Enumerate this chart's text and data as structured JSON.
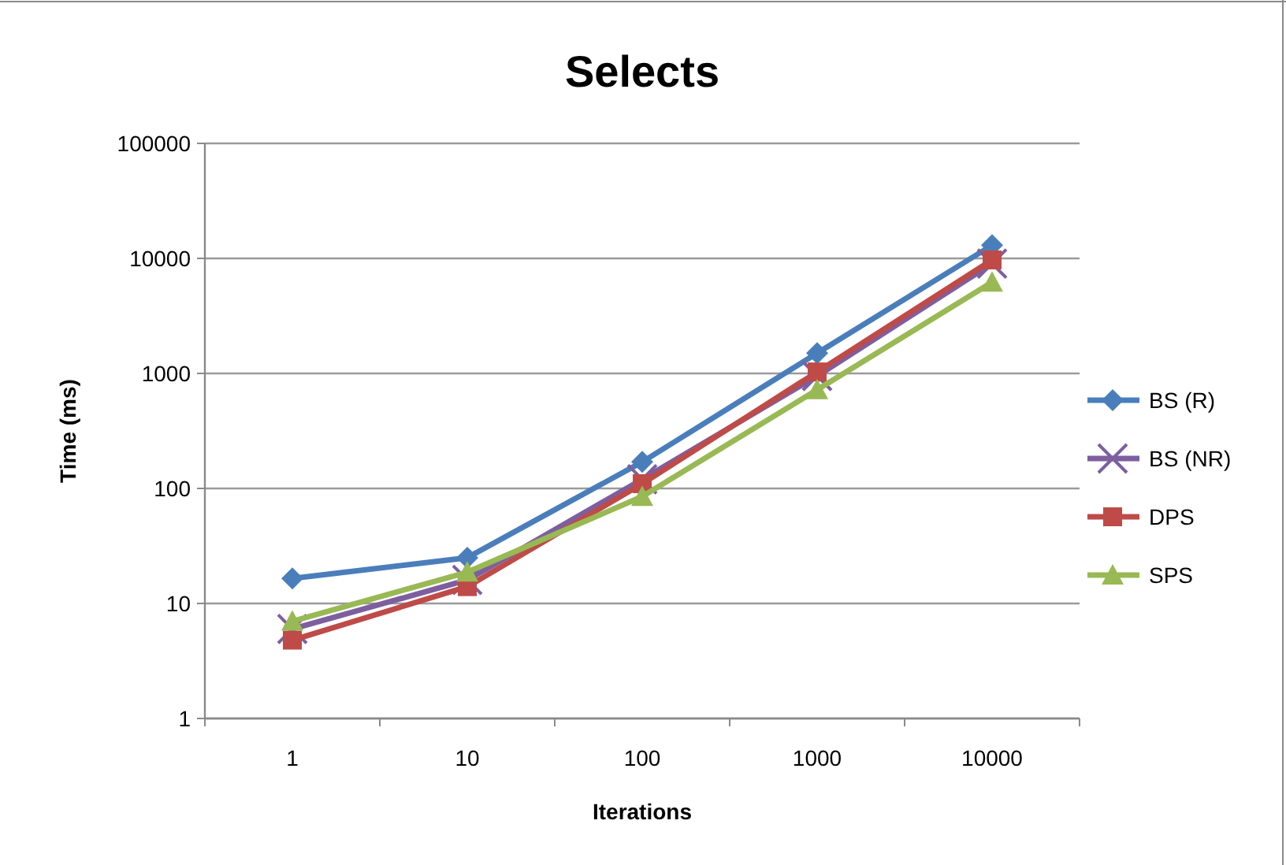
{
  "chart_data": {
    "type": "line",
    "title": "Selects",
    "xlabel": "Iterations",
    "ylabel": "Time (ms)",
    "categories": [
      "1",
      "10",
      "100",
      "1000",
      "10000"
    ],
    "log": "y",
    "ylim": [
      1,
      100000
    ],
    "yticks": [
      1,
      10,
      100,
      1000,
      10000,
      100000
    ],
    "grid": "y",
    "legend": "right",
    "series": [
      {
        "name": "BS (R)",
        "color": "#4a7ebb",
        "marker": "diamond",
        "values": [
          16.5,
          25,
          170,
          1500,
          13000
        ]
      },
      {
        "name": "BS (NR)",
        "color": "#7d5fa0",
        "marker": "cross",
        "values": [
          6,
          16,
          120,
          950,
          9000
        ]
      },
      {
        "name": "DPS",
        "color": "#be4b48",
        "marker": "square",
        "values": [
          4.8,
          14,
          110,
          1030,
          9700
        ]
      },
      {
        "name": "SPS",
        "color": "#98b954",
        "marker": "triangle",
        "values": [
          7,
          18.7,
          85,
          720,
          6200
        ]
      }
    ]
  }
}
